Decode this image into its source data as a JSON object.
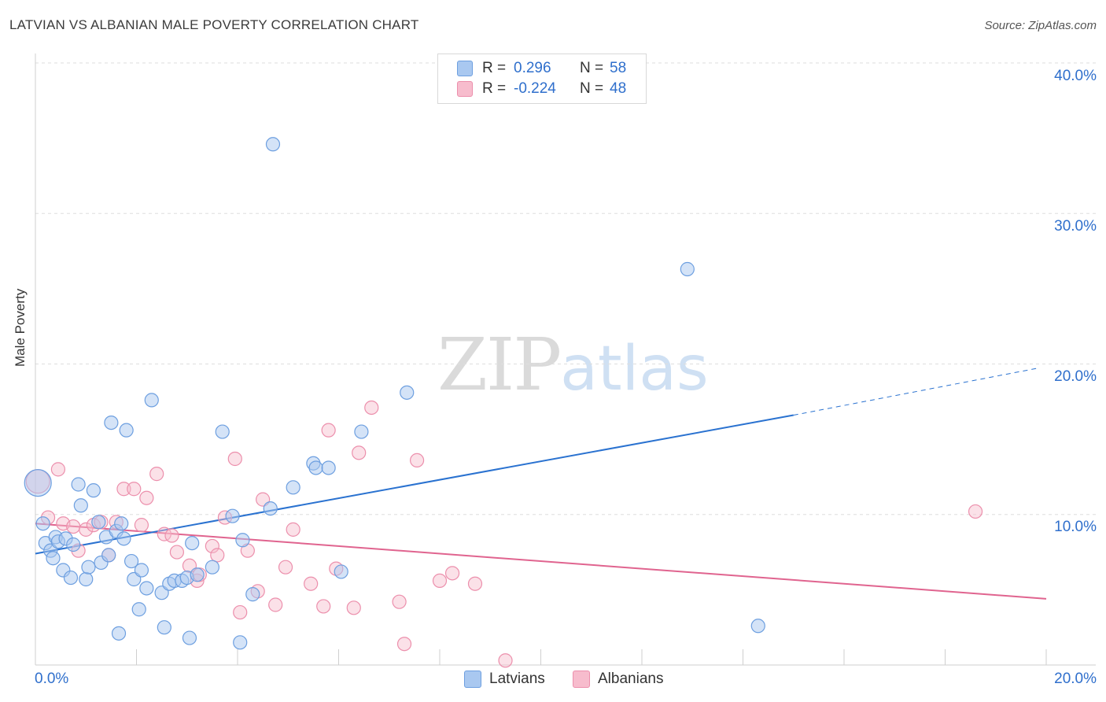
{
  "header": {
    "title": "LATVIAN VS ALBANIAN MALE POVERTY CORRELATION CHART",
    "source": "Source: ZipAtlas.com"
  },
  "legend": {
    "latvians": {
      "r_label": "R =",
      "r_value": "0.296",
      "n_label": "N =",
      "n_value": "58"
    },
    "albanians": {
      "r_label": "R =",
      "r_value": "-0.224",
      "n_label": "N =",
      "n_value": "48"
    }
  },
  "bottom_legend": {
    "latvians": "Latvians",
    "albanians": "Albanians"
  },
  "watermark": {
    "zip": "ZIP",
    "atlas": "atlas"
  },
  "colors": {
    "latvian_fill": "#a9c8f0",
    "latvian_stroke": "#6d9fe0",
    "latvian_line": "#2a72d0",
    "albanian_fill": "#f7bccd",
    "albanian_stroke": "#ec8fac",
    "albanian_line": "#e0648f",
    "tick_text": "#2f6fcc",
    "grid": "#dedede"
  },
  "chart_data": {
    "type": "scatter",
    "title": "LATVIAN VS ALBANIAN MALE POVERTY CORRELATION CHART",
    "xlabel": "",
    "ylabel": "Male Poverty",
    "xlim": [
      0,
      20
    ],
    "ylim": [
      0,
      40
    ],
    "x_tick_labels": [
      "0.0%",
      "20.0%"
    ],
    "y_ticks": [
      10,
      20,
      30,
      40
    ],
    "y_tick_labels": [
      "10.0%",
      "20.0%",
      "30.0%",
      "40.0%"
    ],
    "grid": true,
    "legend_position": "top-center",
    "series": [
      {
        "name": "Latvians",
        "r": 0.296,
        "n": 58,
        "trend": {
          "x0": 0,
          "y0": 7.4,
          "x1": 15.0,
          "y1": 16.6,
          "dashed_to_x": 19.8,
          "dashed_to_y": 19.7
        },
        "points": [
          [
            0.05,
            12.1
          ],
          [
            0.15,
            9.4
          ],
          [
            0.2,
            8.1
          ],
          [
            0.3,
            7.6
          ],
          [
            0.35,
            7.1
          ],
          [
            0.4,
            8.5
          ],
          [
            0.45,
            8.2
          ],
          [
            0.55,
            6.3
          ],
          [
            0.6,
            8.4
          ],
          [
            0.7,
            5.8
          ],
          [
            0.75,
            8.0
          ],
          [
            0.85,
            12.0
          ],
          [
            0.9,
            10.6
          ],
          [
            1.0,
            5.7
          ],
          [
            1.05,
            6.5
          ],
          [
            1.15,
            11.6
          ],
          [
            1.25,
            9.5
          ],
          [
            1.3,
            6.8
          ],
          [
            1.4,
            8.5
          ],
          [
            1.45,
            7.3
          ],
          [
            1.5,
            16.1
          ],
          [
            1.6,
            8.9
          ],
          [
            1.65,
            2.1
          ],
          [
            1.7,
            9.4
          ],
          [
            1.75,
            8.4
          ],
          [
            1.8,
            15.6
          ],
          [
            1.9,
            6.9
          ],
          [
            1.95,
            5.7
          ],
          [
            2.05,
            3.7
          ],
          [
            2.1,
            6.3
          ],
          [
            2.2,
            5.1
          ],
          [
            2.3,
            17.6
          ],
          [
            2.5,
            4.8
          ],
          [
            2.55,
            2.5
          ],
          [
            2.65,
            5.4
          ],
          [
            2.75,
            5.6
          ],
          [
            2.9,
            5.6
          ],
          [
            3.0,
            5.8
          ],
          [
            3.05,
            1.8
          ],
          [
            3.1,
            8.1
          ],
          [
            3.2,
            6.0
          ],
          [
            3.5,
            6.5
          ],
          [
            3.7,
            15.5
          ],
          [
            3.9,
            9.9
          ],
          [
            4.05,
            1.5
          ],
          [
            4.1,
            8.3
          ],
          [
            4.3,
            4.7
          ],
          [
            4.65,
            10.4
          ],
          [
            4.7,
            34.6
          ],
          [
            5.1,
            11.8
          ],
          [
            5.5,
            13.4
          ],
          [
            5.55,
            13.1
          ],
          [
            5.8,
            13.1
          ],
          [
            6.05,
            6.2
          ],
          [
            6.45,
            15.5
          ],
          [
            7.35,
            18.1
          ],
          [
            12.9,
            26.3
          ],
          [
            14.3,
            2.6
          ]
        ]
      },
      {
        "name": "Albanians",
        "r": -0.224,
        "n": 48,
        "trend": {
          "x0": 0,
          "y0": 9.4,
          "x1": 20.0,
          "y1": 4.4
        },
        "points": [
          [
            0.05,
            12.2
          ],
          [
            0.25,
            9.8
          ],
          [
            0.45,
            13.0
          ],
          [
            0.55,
            9.4
          ],
          [
            0.75,
            9.2
          ],
          [
            0.85,
            7.6
          ],
          [
            1.0,
            9.0
          ],
          [
            1.15,
            9.3
          ],
          [
            1.3,
            9.5
          ],
          [
            1.45,
            7.3
          ],
          [
            1.6,
            9.5
          ],
          [
            1.75,
            11.7
          ],
          [
            1.95,
            11.7
          ],
          [
            2.1,
            9.3
          ],
          [
            2.2,
            11.1
          ],
          [
            2.4,
            12.7
          ],
          [
            2.55,
            8.7
          ],
          [
            2.7,
            8.6
          ],
          [
            2.8,
            7.5
          ],
          [
            3.05,
            6.6
          ],
          [
            3.2,
            5.6
          ],
          [
            3.25,
            6.0
          ],
          [
            3.5,
            7.9
          ],
          [
            3.6,
            7.3
          ],
          [
            3.75,
            9.8
          ],
          [
            3.95,
            13.7
          ],
          [
            4.05,
            3.5
          ],
          [
            4.2,
            7.6
          ],
          [
            4.4,
            4.9
          ],
          [
            4.5,
            11.0
          ],
          [
            4.75,
            4.0
          ],
          [
            4.95,
            6.5
          ],
          [
            5.1,
            9.0
          ],
          [
            5.45,
            5.4
          ],
          [
            5.7,
            3.9
          ],
          [
            5.8,
            15.6
          ],
          [
            5.95,
            6.4
          ],
          [
            6.3,
            3.8
          ],
          [
            6.4,
            14.1
          ],
          [
            6.65,
            17.1
          ],
          [
            7.2,
            4.2
          ],
          [
            7.3,
            1.4
          ],
          [
            7.55,
            13.6
          ],
          [
            8.0,
            5.6
          ],
          [
            8.25,
            6.1
          ],
          [
            8.7,
            5.4
          ],
          [
            9.3,
            0.3
          ],
          [
            18.6,
            10.2
          ]
        ]
      }
    ]
  }
}
